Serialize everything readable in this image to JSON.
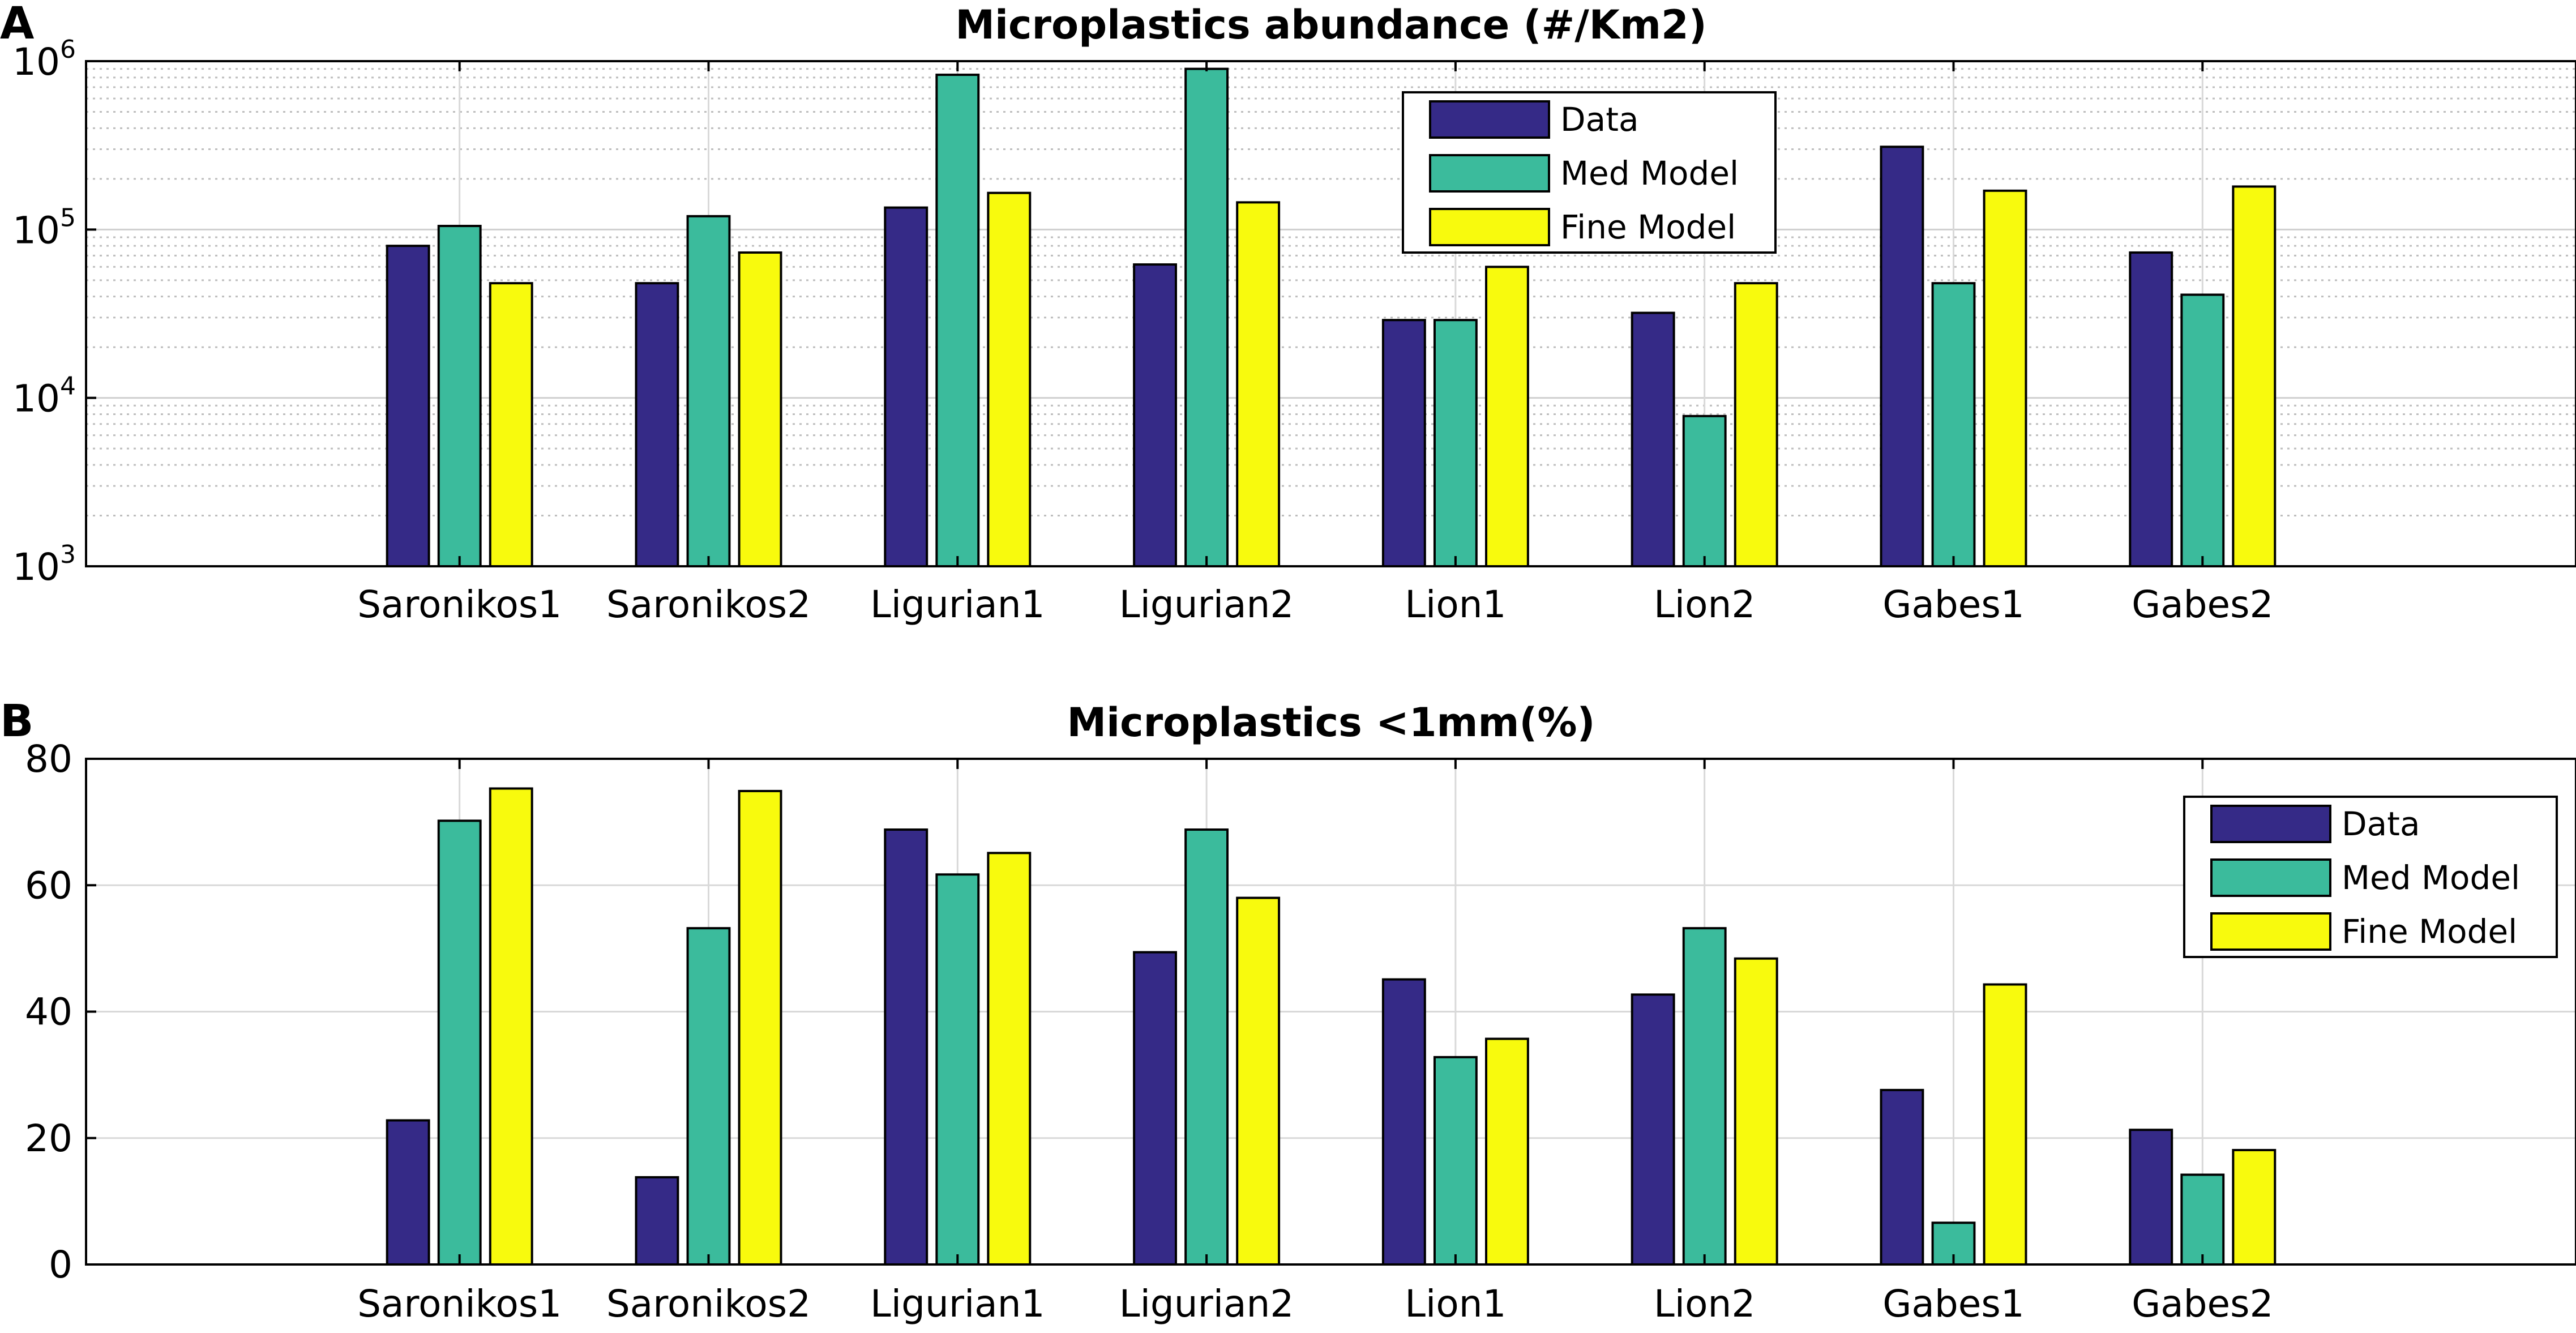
{
  "figure": {
    "panel_labels": [
      "A",
      "B"
    ]
  },
  "chart_data": [
    {
      "panel": "A",
      "type": "bar",
      "title": "Microplastics abundance (#/Km2)",
      "xlabel": "",
      "ylabel": "",
      "yscale": "log",
      "ylim": [
        1000,
        1000000
      ],
      "ytick_base": "10",
      "ytick_exponents": [
        "3",
        "4",
        "5",
        "6"
      ],
      "grid": true,
      "minor_grid": true,
      "legend_position": "top-right",
      "categories": [
        "Saronikos1",
        "Saronikos2",
        "Ligurian1",
        "Ligurian2",
        "Lion1",
        "Lion2",
        "Gabes1",
        "Gabes2"
      ],
      "series": [
        {
          "name": "Data",
          "color": "#352a87",
          "values": [
            80000,
            48000,
            135000,
            62000,
            29000,
            32000,
            310000,
            73000
          ]
        },
        {
          "name": "Med Model",
          "color": "#3bbb9c",
          "values": [
            105000,
            120000,
            830000,
            900000,
            29000,
            7800,
            48000,
            41000
          ]
        },
        {
          "name": "Fine Model",
          "color": "#f8fa0d",
          "values": [
            48000,
            73000,
            165000,
            145000,
            60000,
            48000,
            170000,
            180000
          ]
        }
      ]
    },
    {
      "panel": "B",
      "type": "bar",
      "title": "Microplastics <1mm(%)",
      "xlabel": "",
      "ylabel": "",
      "yscale": "linear",
      "ylim": [
        0,
        80
      ],
      "yticks": [
        "0",
        "20",
        "40",
        "60",
        "80"
      ],
      "grid": true,
      "legend_position": "top-right",
      "categories": [
        "Saronikos1",
        "Saronikos2",
        "Ligurian1",
        "Ligurian2",
        "Lion1",
        "Lion2",
        "Gabes1",
        "Gabes2"
      ],
      "series": [
        {
          "name": "Data",
          "color": "#352a87",
          "values": [
            22.8,
            13.8,
            68.8,
            49.4,
            45.1,
            42.7,
            27.6,
            21.3
          ]
        },
        {
          "name": "Med Model",
          "color": "#3bbb9c",
          "values": [
            70.2,
            53.2,
            61.7,
            68.8,
            32.8,
            53.2,
            6.6,
            14.2
          ]
        },
        {
          "name": "Fine Model",
          "color": "#f8fa0d",
          "values": [
            75.3,
            74.9,
            65.1,
            58.0,
            35.7,
            48.4,
            44.3,
            18.1
          ]
        }
      ]
    }
  ]
}
